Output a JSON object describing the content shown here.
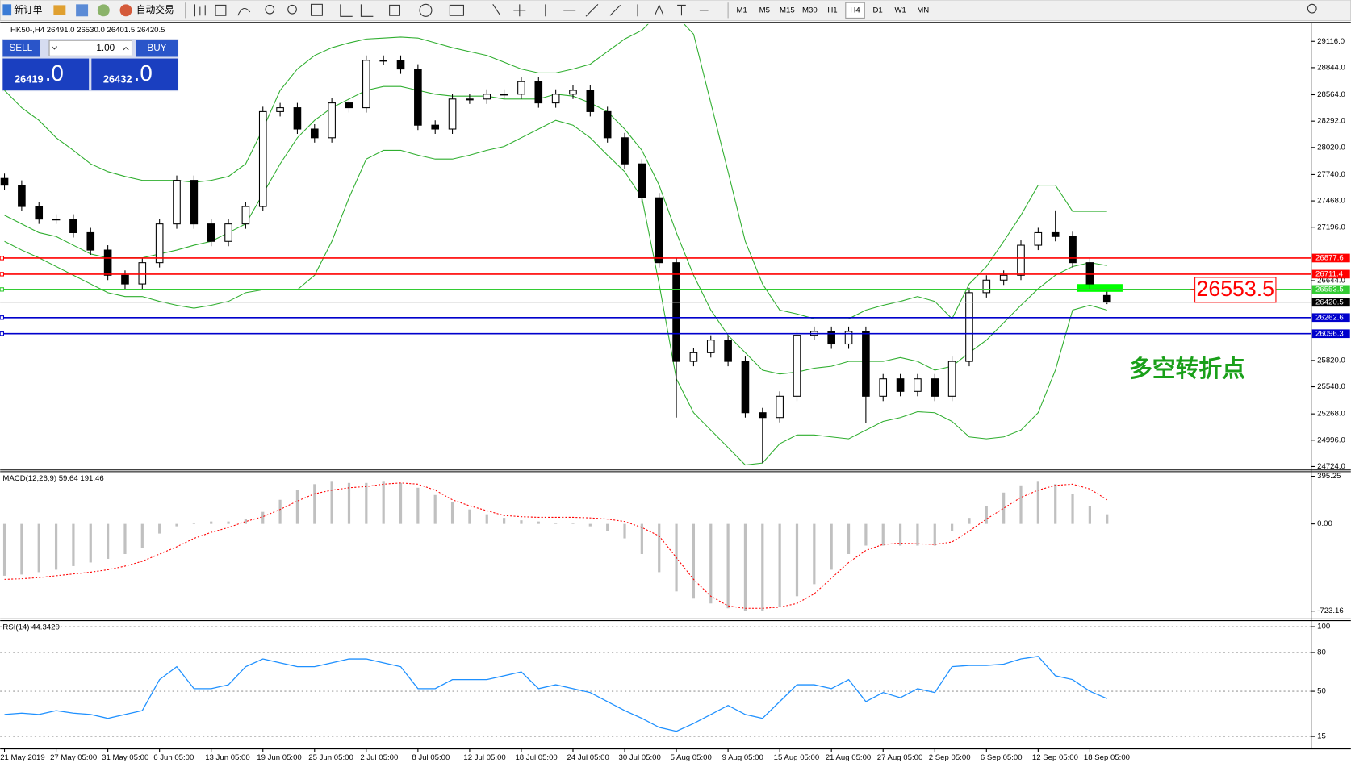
{
  "toolbar": {
    "new_order": "新订单",
    "auto_trading": "自动交易",
    "timeframes": [
      "M1",
      "M5",
      "M15",
      "M30",
      "H1",
      "H4",
      "D1",
      "W1",
      "MN"
    ],
    "active_timeframe": "H4"
  },
  "header": "HK50-,H4  26491.0 26530.0 26401.5 26420.5",
  "trade_panel": {
    "sell": "SELL",
    "lot": "1.00",
    "buy": "BUY",
    "bid": "26419",
    "bid_fraction": ".0",
    "ask": "26432",
    "ask_fraction": ".0"
  },
  "chart_data": [
    {
      "type": "candlestick",
      "x_labels": [
        "21 May 2019",
        "27 May 05:00",
        "31 May 05:00",
        "6 Jun 05:00",
        "13 Jun 05:00",
        "19 Jun 05:00",
        "25 Jun 05:00",
        "2 Jul 05:00",
        "8 Jul 05:00",
        "12 Jul 05:00",
        "18 Jul 05:00",
        "24 Jul 05:00",
        "30 Jul 05:00",
        "5 Aug 05:00",
        "9 Aug 05:00",
        "15 Aug 05:00",
        "21 Aug 05:00",
        "27 Aug 05:00",
        "2 Sep 05:00",
        "6 Sep 05:00",
        "12 Sep 05:00",
        "18 Sep 05:00"
      ],
      "open": [
        27700,
        27630,
        27410,
        27280,
        27280,
        27140,
        26960,
        26700,
        26610,
        26830,
        27230,
        27680,
        27230,
        27050,
        27230,
        27410,
        28390,
        28430,
        28210,
        28120,
        28480,
        28430,
        28920,
        28920,
        28830,
        28250,
        28210,
        28520,
        28520,
        28570,
        28570,
        28700,
        28480,
        28570,
        28610,
        28390,
        28120,
        27850,
        27500,
        26830,
        25810,
        25900,
        26030,
        25810,
        25280,
        25230,
        25450,
        26080,
        26120,
        25990,
        26120,
        25450,
        25630,
        25500,
        25630,
        25450,
        25810,
        26520,
        26650,
        26700,
        27010,
        27140,
        27100,
        26830,
        26491
      ],
      "high": [
        27750,
        27680,
        27460,
        27330,
        27330,
        27190,
        27010,
        26750,
        26880,
        27280,
        27730,
        27730,
        27280,
        27280,
        27460,
        28440,
        28480,
        28480,
        28260,
        28530,
        28530,
        28970,
        28970,
        28970,
        28880,
        28300,
        28570,
        28570,
        28620,
        28620,
        28750,
        28750,
        28620,
        28660,
        28660,
        28440,
        28170,
        27900,
        27550,
        26880,
        25950,
        26080,
        26080,
        25860,
        25330,
        25500,
        26130,
        26170,
        26170,
        26170,
        26170,
        25680,
        25680,
        25680,
        25680,
        25860,
        26570,
        26700,
        26750,
        27060,
        27190,
        27370,
        27150,
        26880,
        26530
      ],
      "low": [
        27580,
        27360,
        27230,
        27230,
        27090,
        26910,
        26650,
        26560,
        26560,
        26780,
        27180,
        27180,
        27000,
        27000,
        27180,
        27360,
        28340,
        28160,
        28070,
        28070,
        28380,
        28380,
        28870,
        28780,
        28200,
        28160,
        28160,
        28470,
        28470,
        28520,
        28520,
        28430,
        28430,
        28520,
        28340,
        28070,
        27800,
        27450,
        26780,
        25230,
        25760,
        25850,
        25760,
        25230,
        24760,
        25180,
        25400,
        26030,
        25940,
        25940,
        25170,
        25400,
        25450,
        25450,
        25400,
        25400,
        25760,
        26470,
        26600,
        26650,
        26960,
        27050,
        26780,
        26560,
        26401.5
      ],
      "close": [
        27630,
        27410,
        27280,
        27280,
        27140,
        26960,
        26700,
        26610,
        26830,
        27230,
        27680,
        27230,
        27050,
        27230,
        27410,
        28390,
        28430,
        28210,
        28120,
        28480,
        28430,
        28920,
        28920,
        28830,
        28250,
        28210,
        28520,
        28520,
        28570,
        28570,
        28700,
        28480,
        28570,
        28610,
        28390,
        28120,
        27850,
        27500,
        26830,
        25810,
        25900,
        26030,
        25810,
        25280,
        25230,
        25450,
        26080,
        26120,
        25990,
        26120,
        25450,
        25630,
        25500,
        25630,
        25450,
        25810,
        26520,
        26650,
        26700,
        27010,
        27140,
        27100,
        26830,
        26610,
        26420.5
      ],
      "bands": {
        "color": "#2fae2f",
        "upper": [
          28610,
          28430,
          28300,
          28120,
          27990,
          27850,
          27770,
          27720,
          27680,
          27680,
          27680,
          27660,
          27680,
          27720,
          27850,
          28210,
          28610,
          28830,
          28970,
          29050,
          29100,
          29140,
          29150,
          29160,
          29150,
          29100,
          29050,
          29010,
          28970,
          28900,
          28830,
          28790,
          28790,
          28830,
          28880,
          29010,
          29140,
          29230,
          29410,
          29380,
          29190,
          28480,
          27770,
          27050,
          26610,
          26340,
          26300,
          26250,
          26250,
          26250,
          26340,
          26390,
          26430,
          26480,
          26430,
          26250,
          26610,
          26790,
          27050,
          27320,
          27630,
          27630,
          27360,
          27360,
          27360
        ],
        "middle": [
          27320,
          27230,
          27140,
          27100,
          27010,
          26920,
          26880,
          26880,
          26880,
          26920,
          26960,
          27010,
          27050,
          27140,
          27230,
          27540,
          27850,
          28120,
          28300,
          28430,
          28520,
          28610,
          28650,
          28650,
          28610,
          28570,
          28550,
          28550,
          28550,
          28520,
          28520,
          28520,
          28570,
          28550,
          28480,
          28390,
          28210,
          27990,
          27630,
          27140,
          26700,
          26340,
          26080,
          25900,
          25720,
          25680,
          25700,
          25740,
          25760,
          25810,
          25810,
          25810,
          25850,
          25810,
          25720,
          25760,
          25900,
          26030,
          26210,
          26390,
          26560,
          26700,
          26790,
          26830,
          26800
        ],
        "lower": [
          27050,
          26960,
          26880,
          26790,
          26700,
          26610,
          26520,
          26480,
          26480,
          26430,
          26390,
          26360,
          26390,
          26430,
          26520,
          26550,
          26550,
          26550,
          26700,
          27050,
          27500,
          27900,
          27990,
          27990,
          27940,
          27900,
          27900,
          27940,
          27990,
          28030,
          28120,
          28210,
          28300,
          28250,
          28120,
          27940,
          27770,
          27500,
          26610,
          25630,
          25280,
          25100,
          24920,
          24740,
          24760,
          24960,
          25050,
          25050,
          25030,
          25010,
          25100,
          25190,
          25230,
          25290,
          25280,
          25190,
          25030,
          25010,
          25030,
          25100,
          25280,
          25720,
          26340,
          26390,
          26340
        ]
      },
      "ylim": [
        24697,
        29294
      ],
      "yticks": [
        {
          "value": 29116,
          "label": "29116.0"
        },
        {
          "value": 28844,
          "label": "28844.0"
        },
        {
          "value": 28564,
          "label": "28564.0"
        },
        {
          "value": 28292,
          "label": "28292.0"
        },
        {
          "value": 28020,
          "label": "28020.0"
        },
        {
          "value": 27740,
          "label": "27740.0"
        },
        {
          "value": 27468,
          "label": "27468.0"
        },
        {
          "value": 27196,
          "label": "27196.0"
        },
        {
          "value": 26644,
          "label": "26644.0"
        },
        {
          "value": 25820,
          "label": "25820.0"
        },
        {
          "value": 25548,
          "label": "25548.0"
        },
        {
          "value": 25268,
          "label": "25268.0"
        },
        {
          "value": 24996,
          "label": "24996.0"
        },
        {
          "value": 24724,
          "label": "24724.0"
        }
      ],
      "hlines": [
        {
          "value": 26877.6,
          "color": "#ff0000"
        },
        {
          "value": 26711.4,
          "color": "#ff0000"
        },
        {
          "value": 26553.5,
          "color": "#33cc33"
        },
        {
          "value": 26262.6,
          "color": "#0000cc"
        },
        {
          "value": 26096.3,
          "color": "#0000cc"
        }
      ],
      "last_price": 26420.5,
      "annotation": {
        "value": 26553.5,
        "text": "多空转折点",
        "color": "#ff0000",
        "text_color": "#1aa01a"
      }
    },
    {
      "type": "macd",
      "title": "MACD(12,26,9) 59.64 191.46",
      "histogram": [
        -430,
        -420,
        -400,
        -380,
        -350,
        -320,
        -290,
        -250,
        -200,
        -80,
        -20,
        10,
        20,
        20,
        40,
        100,
        200,
        280,
        330,
        350,
        340,
        340,
        350,
        340,
        300,
        240,
        180,
        120,
        80,
        50,
        30,
        20,
        10,
        10,
        -20,
        -60,
        -120,
        -250,
        -400,
        -560,
        -620,
        -660,
        -700,
        -720,
        -720,
        -690,
        -600,
        -500,
        -380,
        -250,
        -180,
        -180,
        -180,
        -180,
        -180,
        -60,
        50,
        150,
        260,
        320,
        350,
        330,
        250,
        150,
        80
      ],
      "signal": [
        -460,
        -455,
        -445,
        -430,
        -415,
        -400,
        -380,
        -350,
        -310,
        -250,
        -190,
        -120,
        -70,
        -30,
        20,
        60,
        120,
        190,
        250,
        280,
        300,
        310,
        330,
        340,
        330,
        280,
        200,
        150,
        110,
        70,
        60,
        55,
        55,
        55,
        50,
        40,
        20,
        -30,
        -100,
        -280,
        -460,
        -600,
        -680,
        -700,
        -700,
        -690,
        -660,
        -580,
        -450,
        -320,
        -220,
        -170,
        -160,
        -165,
        -170,
        -150,
        -60,
        40,
        130,
        220,
        280,
        320,
        330,
        290,
        200
      ],
      "histogram_color": "#c0c0c0",
      "signal_color": "#ff0000",
      "ylim": [
        -781,
        426
      ],
      "yticks": [
        {
          "value": 395.25,
          "label": "395.25"
        },
        {
          "value": 0,
          "label": "0.00"
        },
        {
          "value": -723.16,
          "label": "-723.16"
        }
      ]
    },
    {
      "type": "line",
      "title": "RSI(14) 44.3420",
      "values": [
        32,
        33,
        32,
        35,
        33,
        32,
        29,
        32,
        35,
        59,
        69,
        52,
        52,
        55,
        69,
        75,
        72,
        69,
        69,
        72,
        75,
        75,
        72,
        69,
        52,
        52,
        59,
        59,
        59,
        62,
        65,
        52,
        55,
        52,
        49,
        42,
        35,
        29,
        22,
        19,
        25,
        32,
        39,
        32,
        29,
        42,
        55,
        55,
        52,
        59,
        42,
        49,
        45,
        52,
        49,
        69,
        70,
        70,
        71,
        75,
        77,
        62,
        59,
        50,
        44.3
      ],
      "color": "#1e90ff",
      "ylim": [
        6,
        104
      ],
      "yticks": [
        100,
        80,
        50,
        15
      ],
      "grid": true
    }
  ]
}
